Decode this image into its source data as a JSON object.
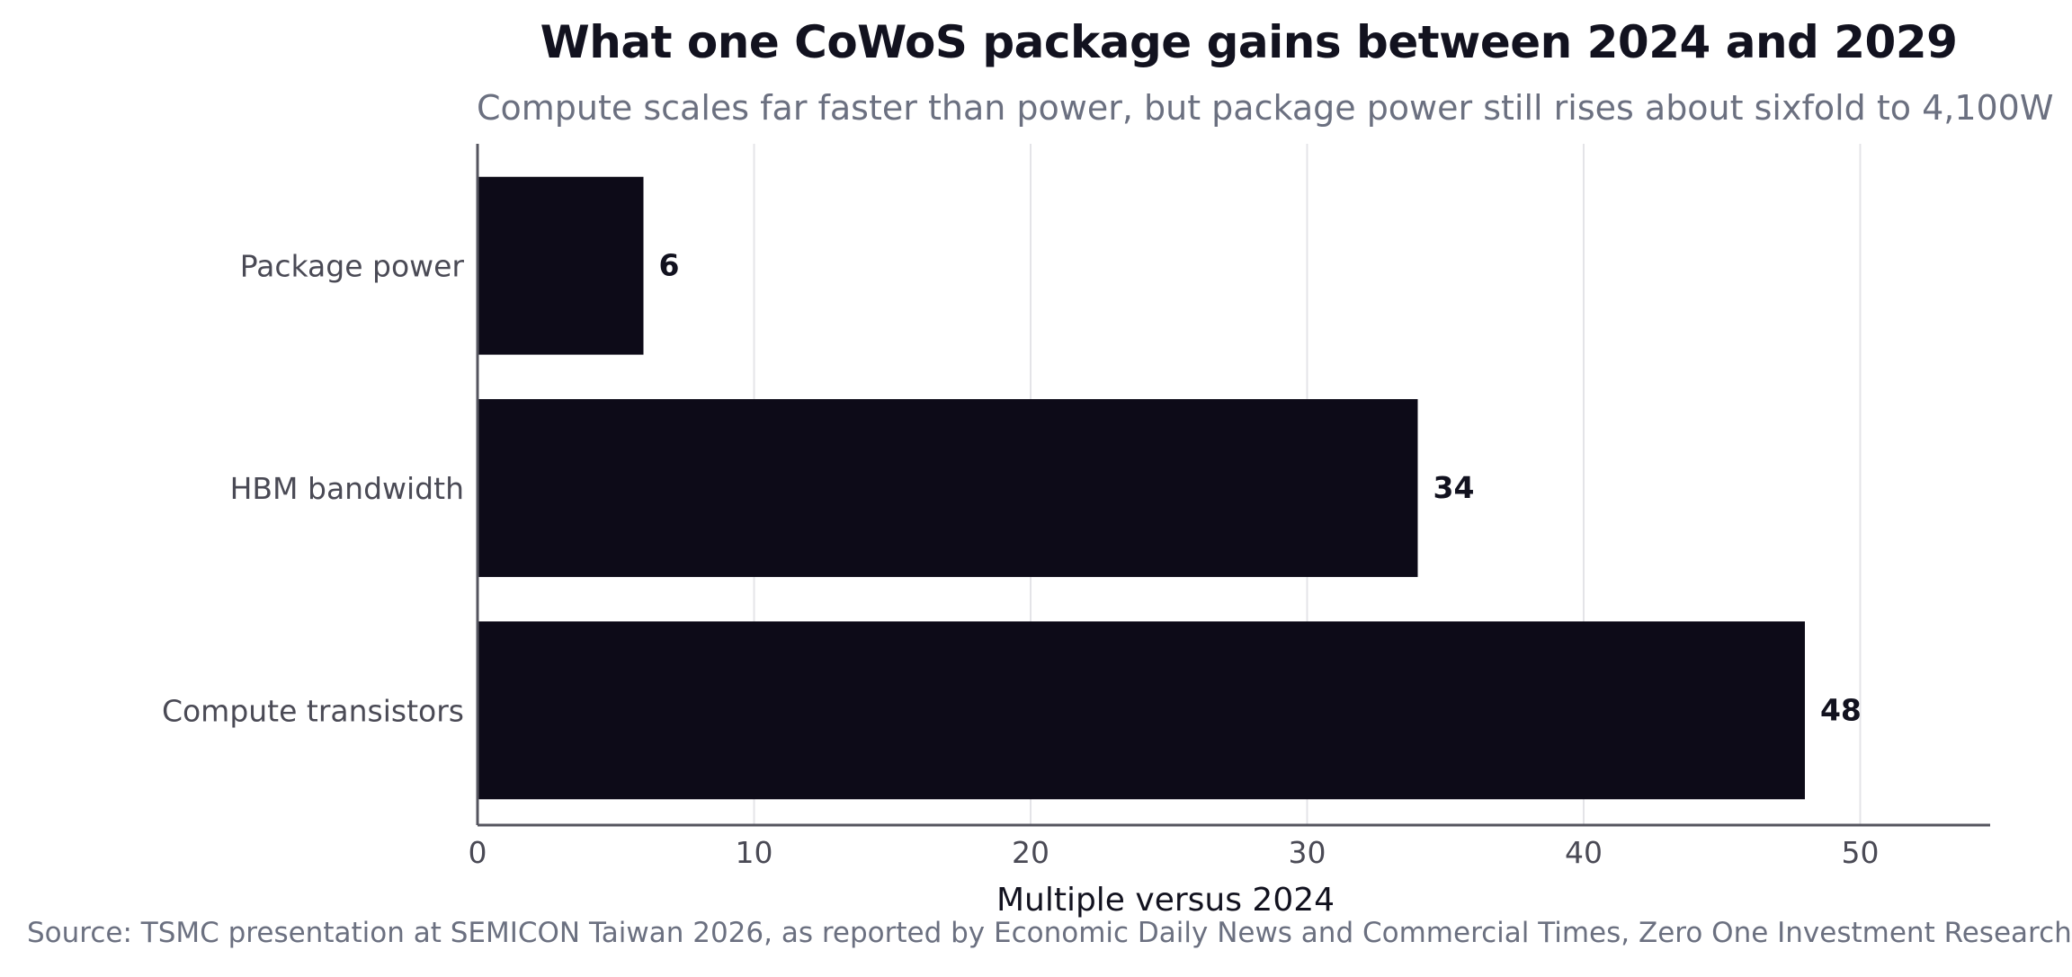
{
  "chart_data": {
    "type": "bar",
    "orientation": "horizontal",
    "title": "What one CoWoS package gains between 2024 and 2029",
    "subtitle": "Compute scales far faster than power, but package power still rises about sixfold to 4,100W",
    "source": "Source: TSMC presentation at SEMICON Taiwan 2026, as reported by Economic Daily News and Commercial Times, Zero One Investment Research",
    "xlabel": "Multiple versus 2024",
    "ylabel": "",
    "categories": [
      "Package power",
      "HBM bandwidth",
      "Compute transistors"
    ],
    "values": [
      6,
      34,
      48
    ],
    "value_labels": [
      "6",
      "34",
      "48"
    ],
    "xlim": [
      0,
      54.7
    ],
    "x_ticks": [
      0,
      10,
      20,
      30,
      40,
      50
    ],
    "x_tick_labels": [
      "0",
      "10",
      "20",
      "30",
      "40",
      "50"
    ],
    "grid": "vertical",
    "legend": "none",
    "bar_color": "#0d0b18",
    "grid_color": "#e4e4e8",
    "axis_color": "#55555f"
  }
}
